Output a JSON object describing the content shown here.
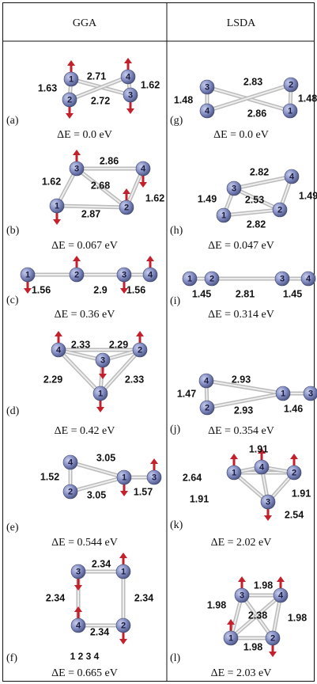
{
  "columns": [
    {
      "title": "GGA",
      "panels": [
        {
          "label": "(a)",
          "energy": "ΔE = 0.0 eV",
          "atoms": [
            "1",
            "2",
            "3",
            "4"
          ],
          "bonds": [
            "1.63",
            "2.71",
            "2.72",
            "1.62"
          ]
        },
        {
          "label": "(b)",
          "energy": "ΔE = 0.067 eV",
          "atoms": [
            "1",
            "2",
            "3",
            "4"
          ],
          "bonds": [
            "2.86",
            "1.62",
            "2.68",
            "1.62",
            "2.87"
          ]
        },
        {
          "label": "(c)",
          "energy": "ΔE = 0.36 eV",
          "atoms": [
            "1",
            "2",
            "3",
            "4"
          ],
          "bonds": [
            "1.56",
            "2.9",
            "1.56"
          ]
        },
        {
          "label": "(d)",
          "energy": "ΔE = 0.42 eV",
          "atoms": [
            "1",
            "2",
            "3",
            "4"
          ],
          "bonds": [
            "2.33",
            "2.29",
            "2.29",
            "2.33"
          ]
        },
        {
          "label": "(e)",
          "energy": "ΔE = 0.544 eV",
          "atoms": [
            "1",
            "2",
            "3",
            "4"
          ],
          "bonds": [
            "3.05",
            "1.52",
            "3.05",
            "1.57"
          ]
        },
        {
          "label": "(f)",
          "energy": "ΔE = 0.665 eV",
          "atoms": [
            "1",
            "2",
            "3",
            "4"
          ],
          "bonds": [
            "2.34",
            "2.34",
            "2.34",
            "2.34"
          ],
          "footnote": "1 2 3 4"
        }
      ]
    },
    {
      "title": "LSDA",
      "panels": [
        {
          "label": "(g)",
          "energy": "ΔE = 0.0 eV",
          "atoms": [
            "1",
            "2",
            "3",
            "4"
          ],
          "bonds": [
            "2.83",
            "2.86",
            "1.48",
            "1.48"
          ]
        },
        {
          "label": "(h)",
          "energy": "ΔE = 0.047 eV",
          "atoms": [
            "1",
            "2",
            "3",
            "4"
          ],
          "bonds": [
            "2.82",
            "1.49",
            "2.53",
            "1.49",
            "2.82"
          ]
        },
        {
          "label": "(i)",
          "energy": "ΔE = 0.314 eV",
          "atoms": [
            "1",
            "2",
            "3",
            "4"
          ],
          "bonds": [
            "1.45",
            "2.81",
            "1.45"
          ]
        },
        {
          "label": "(j)",
          "energy": "ΔE = 0.354 eV",
          "atoms": [
            "1",
            "2",
            "3",
            "4"
          ],
          "bonds": [
            "2.93",
            "1.47",
            "2.93",
            "1.46"
          ]
        },
        {
          "label": "(k)",
          "energy": "ΔE = 2.02 eV",
          "atoms": [
            "1",
            "2",
            "3",
            "4"
          ],
          "bonds": [
            "2.64",
            "1.91",
            "1.91",
            "1.91",
            "2.54"
          ]
        },
        {
          "label": "(l)",
          "energy": "ΔE = 2.03 eV",
          "atoms": [
            "1",
            "2",
            "3",
            "4"
          ],
          "bonds": [
            "1.98",
            "1.98",
            "2.38",
            "1.98",
            "1.98"
          ]
        }
      ]
    }
  ]
}
